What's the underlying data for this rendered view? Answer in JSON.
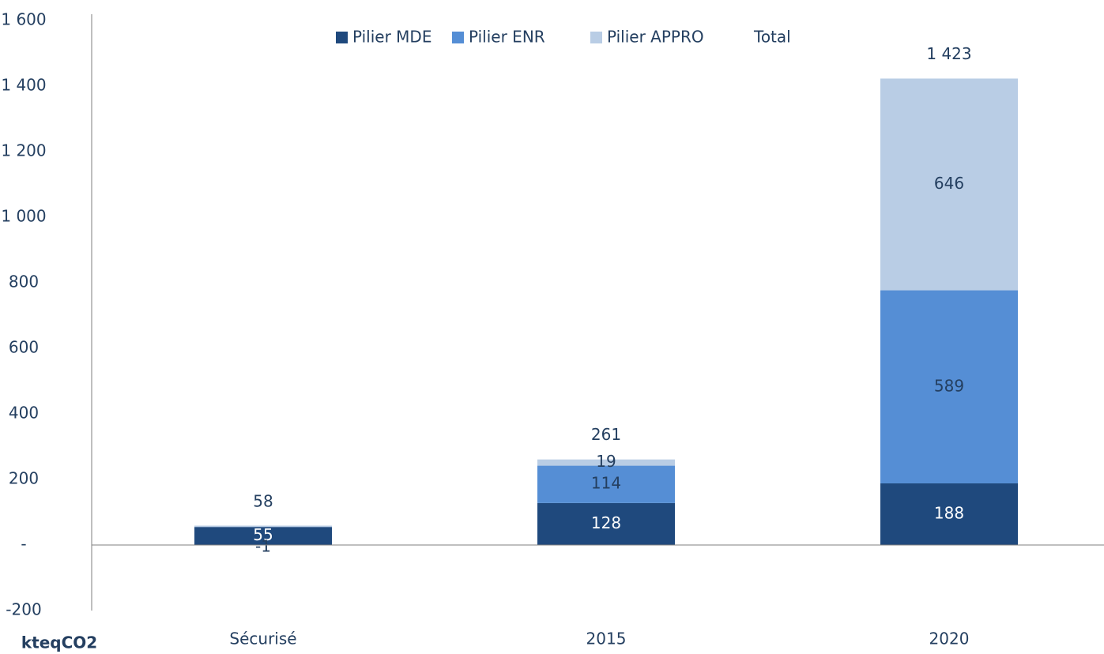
{
  "chart_data": {
    "type": "bar",
    "stacked": true,
    "categories": [
      "Sécurisé",
      "2015",
      "2020"
    ],
    "series": [
      {
        "name": "Pilier MDE",
        "color": "#1f497d",
        "values": [
          55,
          128,
          188
        ]
      },
      {
        "name": "Pilier ENR",
        "color": "#558ed5",
        "values": [
          -1,
          114,
          589
        ]
      },
      {
        "name": "Pilier APPRO",
        "color": "#b9cde5",
        "values": [
          4,
          19,
          646
        ],
        "value_labels": [
          null,
          "19",
          "646"
        ]
      },
      {
        "name": "Total",
        "color": "none",
        "values": [
          58,
          261,
          1423
        ],
        "value_labels": [
          "58",
          "261",
          "1 423"
        ]
      }
    ],
    "total_series": 3,
    "ylabel": "kteqCO2",
    "ylim": [
      -200,
      1600
    ],
    "yticks": [
      {
        "value": -200,
        "label": "-200"
      },
      {
        "value": 0,
        "label": "-"
      },
      200,
      400,
      600,
      800,
      {
        "value": 1000,
        "label": "1 000"
      },
      {
        "value": 1200,
        "label": "1 200"
      },
      {
        "value": 1400,
        "label": "1 400"
      },
      {
        "value": 1600,
        "label": "1 600"
      }
    ],
    "legend": "top"
  }
}
